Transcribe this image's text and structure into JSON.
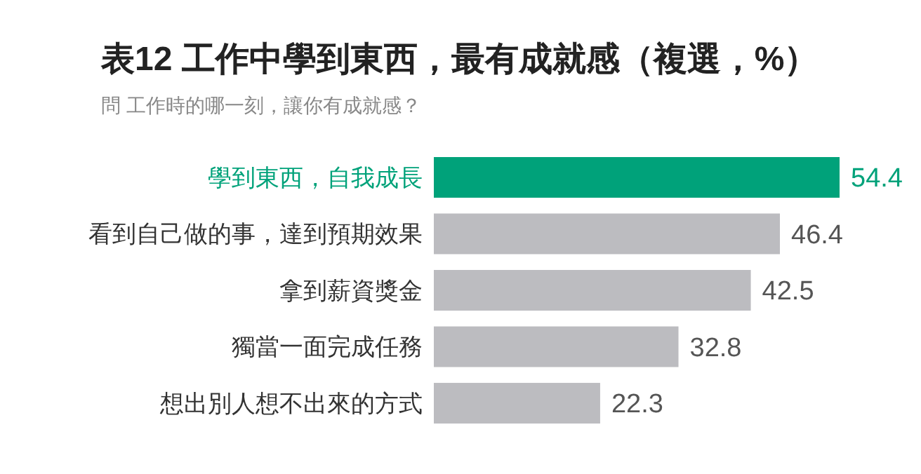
{
  "chart_data": {
    "type": "bar",
    "orientation": "horizontal",
    "title": "表12 工作中學到東西，最有成就感（複選，%）",
    "subtitle": "問 工作時的哪一刻，讓你有成就感？",
    "categories": [
      "學到東西，自我成長",
      "看到自己做的事，達到預期效果",
      "拿到薪資獎金",
      "獨當一面完成任務",
      "想出別人想不出來的方式"
    ],
    "values": [
      54.4,
      46.4,
      42.5,
      32.8,
      22.3
    ],
    "colors": [
      "#00a27a",
      "#bcbcc0",
      "#bcbcc0",
      "#bcbcc0",
      "#bcbcc0"
    ],
    "data_labels": true
  }
}
